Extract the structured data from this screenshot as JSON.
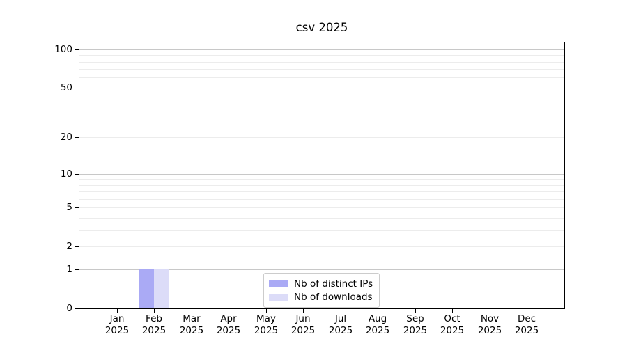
{
  "title": "csv 2025",
  "chart_data": {
    "type": "bar",
    "title": "csv 2025",
    "categories": [
      "Jan 2025",
      "Feb 2025",
      "Mar 2025",
      "Apr 2025",
      "May 2025",
      "Jun 2025",
      "Jul 2025",
      "Aug 2025",
      "Sep 2025",
      "Oct 2025",
      "Nov 2025",
      "Dec 2025"
    ],
    "series": [
      {
        "name": "Nb of distinct IPs",
        "color": "#aaaaf5",
        "values": [
          0,
          1,
          0,
          0,
          0,
          0,
          0,
          0,
          0,
          0,
          0,
          0
        ]
      },
      {
        "name": "Nb of downloads",
        "color": "#dcdcf8",
        "values": [
          0,
          1,
          0,
          0,
          0,
          0,
          0,
          0,
          0,
          0,
          0,
          0
        ]
      }
    ],
    "yscale": "log1p",
    "ylim": [
      0,
      113
    ],
    "yticks": [
      0,
      1,
      2,
      5,
      10,
      20,
      50,
      100
    ],
    "ytick_labels": [
      "0",
      "1",
      "2",
      "5",
      "10",
      "20",
      "50",
      "100"
    ],
    "major_gridlines": [
      1,
      10,
      100
    ],
    "minor_gridlines": [
      2,
      3,
      4,
      5,
      6,
      7,
      8,
      9,
      20,
      30,
      40,
      50,
      60,
      70,
      80,
      90
    ],
    "grid_major_color": "#c8c8c8",
    "grid_minor_color": "#ececec",
    "legend": {
      "entries": [
        "Nb of distinct IPs",
        "Nb of downloads"
      ],
      "border_color": "#cccccc",
      "position": "bottom-center"
    },
    "xlabel": "",
    "ylabel": ""
  }
}
